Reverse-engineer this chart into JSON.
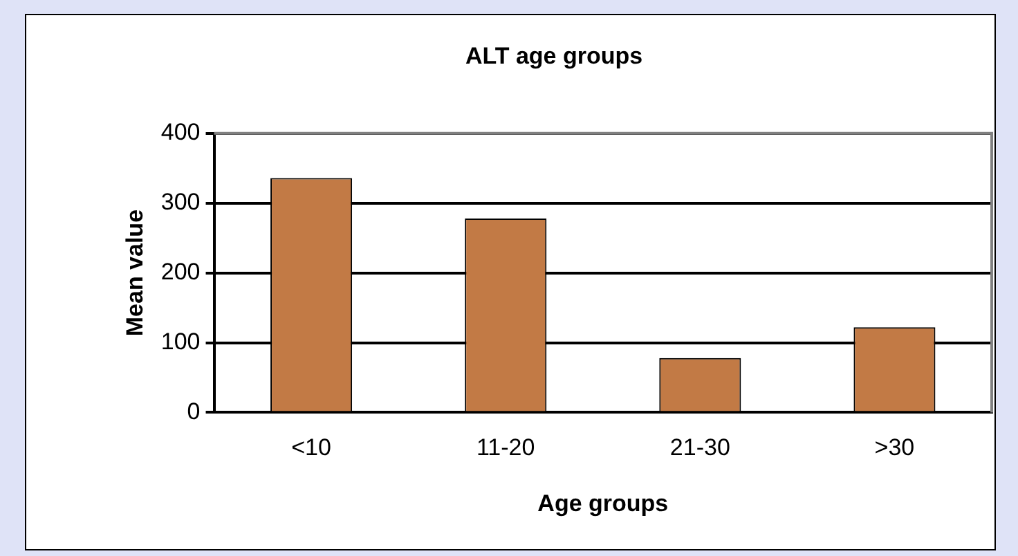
{
  "chart_data": {
    "type": "bar",
    "title": "ALT age groups",
    "xlabel": "Age groups",
    "ylabel": "Mean value",
    "categories": [
      "<10",
      "11-20",
      "21-30",
      ">30"
    ],
    "values": [
      336,
      278,
      78,
      122
    ],
    "color": "#c27a45",
    "ylim": [
      0,
      400
    ],
    "yticks": [
      0,
      100,
      200,
      300,
      400
    ],
    "grid": "y",
    "legend": false
  }
}
